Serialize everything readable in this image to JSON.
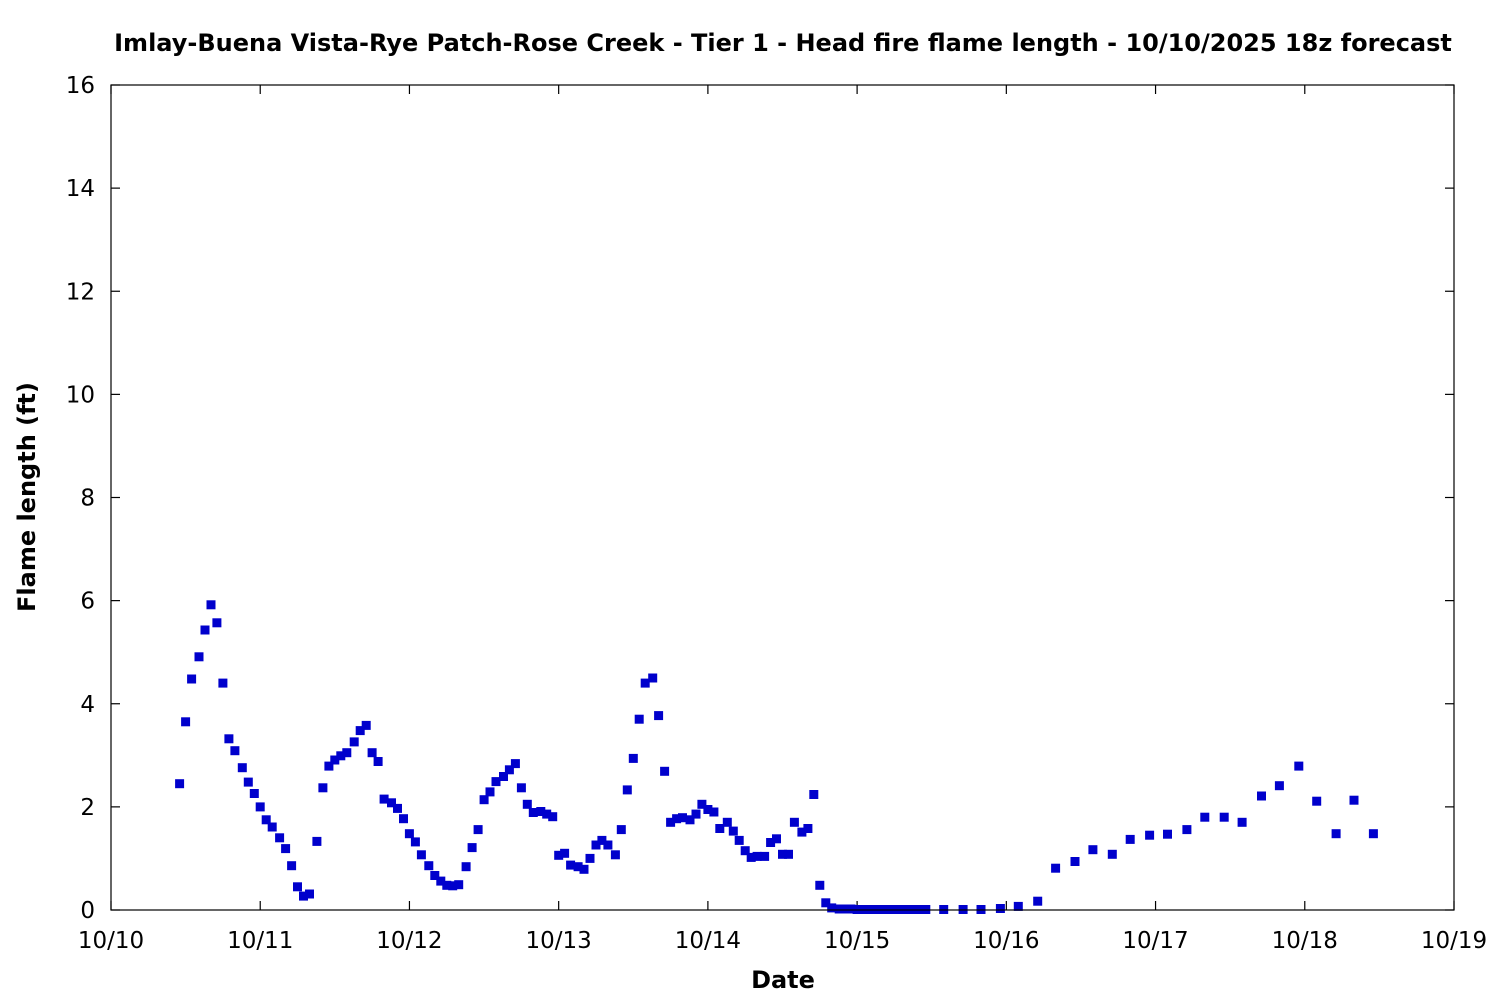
{
  "chart_data": {
    "type": "scatter",
    "title": "Imlay-Buena Vista-Rye Patch-Rose Creek - Tier 1 - Head fire flame length - 10/10/2025 18z forecast",
    "xlabel": "Date",
    "ylabel": "Flame length (ft)",
    "xlim": [
      0,
      9
    ],
    "ylim": [
      0,
      16
    ],
    "x_tick_labels": [
      "10/10",
      "10/11",
      "10/12",
      "10/13",
      "10/14",
      "10/15",
      "10/16",
      "10/17",
      "10/18",
      "10/19"
    ],
    "y_tick_labels": [
      "0",
      "2",
      "4",
      "6",
      "8",
      "10",
      "12",
      "14",
      "16"
    ],
    "grid": false,
    "legend": "none",
    "marker_color": "#0000cc",
    "marker": "square",
    "x_unit_note": "",
    "points": [
      [
        0.46,
        2.45
      ],
      [
        0.5,
        3.65
      ],
      [
        0.54,
        4.48
      ],
      [
        0.59,
        4.91
      ],
      [
        0.63,
        5.43
      ],
      [
        0.67,
        5.92
      ],
      [
        0.71,
        5.57
      ],
      [
        0.75,
        4.4
      ],
      [
        0.79,
        3.32
      ],
      [
        0.83,
        3.09
      ],
      [
        0.88,
        2.76
      ],
      [
        0.92,
        2.48
      ],
      [
        0.96,
        2.26
      ],
      [
        1.0,
        2.0
      ],
      [
        1.04,
        1.75
      ],
      [
        1.08,
        1.61
      ],
      [
        1.13,
        1.4
      ],
      [
        1.17,
        1.19
      ],
      [
        1.21,
        0.86
      ],
      [
        1.25,
        0.45
      ],
      [
        1.29,
        0.27
      ],
      [
        1.33,
        0.31
      ],
      [
        1.38,
        1.33
      ],
      [
        1.42,
        2.37
      ],
      [
        1.46,
        2.79
      ],
      [
        1.5,
        2.91
      ],
      [
        1.54,
        2.99
      ],
      [
        1.58,
        3.05
      ],
      [
        1.63,
        3.26
      ],
      [
        1.67,
        3.48
      ],
      [
        1.71,
        3.58
      ],
      [
        1.75,
        3.05
      ],
      [
        1.79,
        2.88
      ],
      [
        1.83,
        2.15
      ],
      [
        1.88,
        2.08
      ],
      [
        1.92,
        1.97
      ],
      [
        1.96,
        1.77
      ],
      [
        2.0,
        1.48
      ],
      [
        2.04,
        1.32
      ],
      [
        2.08,
        1.07
      ],
      [
        2.13,
        0.86
      ],
      [
        2.17,
        0.67
      ],
      [
        2.21,
        0.56
      ],
      [
        2.25,
        0.48
      ],
      [
        2.29,
        0.47
      ],
      [
        2.33,
        0.49
      ],
      [
        2.38,
        0.84
      ],
      [
        2.42,
        1.21
      ],
      [
        2.46,
        1.56
      ],
      [
        2.5,
        2.14
      ],
      [
        2.54,
        2.29
      ],
      [
        2.58,
        2.49
      ],
      [
        2.63,
        2.59
      ],
      [
        2.67,
        2.72
      ],
      [
        2.71,
        2.84
      ],
      [
        2.75,
        2.37
      ],
      [
        2.79,
        2.05
      ],
      [
        2.83,
        1.89
      ],
      [
        2.88,
        1.91
      ],
      [
        2.92,
        1.86
      ],
      [
        2.96,
        1.81
      ],
      [
        3.0,
        1.06
      ],
      [
        3.04,
        1.1
      ],
      [
        3.08,
        0.87
      ],
      [
        3.13,
        0.84
      ],
      [
        3.17,
        0.79
      ],
      [
        3.21,
        1.0
      ],
      [
        3.25,
        1.26
      ],
      [
        3.29,
        1.35
      ],
      [
        3.33,
        1.26
      ],
      [
        3.38,
        1.07
      ],
      [
        3.42,
        1.56
      ],
      [
        3.46,
        2.33
      ],
      [
        3.5,
        2.94
      ],
      [
        3.54,
        3.7
      ],
      [
        3.58,
        4.4
      ],
      [
        3.63,
        4.5
      ],
      [
        3.67,
        3.77
      ],
      [
        3.71,
        2.69
      ],
      [
        3.75,
        1.7
      ],
      [
        3.79,
        1.77
      ],
      [
        3.83,
        1.79
      ],
      [
        3.88,
        1.75
      ],
      [
        3.92,
        1.86
      ],
      [
        3.96,
        2.05
      ],
      [
        4.0,
        1.95
      ],
      [
        4.04,
        1.9
      ],
      [
        4.08,
        1.58
      ],
      [
        4.13,
        1.7
      ],
      [
        4.17,
        1.53
      ],
      [
        4.21,
        1.35
      ],
      [
        4.25,
        1.15
      ],
      [
        4.29,
        1.02
      ],
      [
        4.33,
        1.04
      ],
      [
        4.38,
        1.04
      ],
      [
        4.42,
        1.31
      ],
      [
        4.46,
        1.38
      ],
      [
        4.5,
        1.08
      ],
      [
        4.54,
        1.08
      ],
      [
        4.58,
        1.7
      ],
      [
        4.63,
        1.51
      ],
      [
        4.67,
        1.58
      ],
      [
        4.71,
        2.24
      ],
      [
        4.75,
        0.48
      ],
      [
        4.79,
        0.14
      ],
      [
        4.83,
        0.04
      ],
      [
        4.88,
        0.02
      ],
      [
        4.92,
        0.02
      ],
      [
        4.96,
        0.02
      ],
      [
        5.0,
        0.01
      ],
      [
        5.04,
        0.01
      ],
      [
        5.08,
        0.01
      ],
      [
        5.13,
        0.01
      ],
      [
        5.17,
        0.01
      ],
      [
        5.21,
        0.01
      ],
      [
        5.25,
        0.01
      ],
      [
        5.29,
        0.01
      ],
      [
        5.33,
        0.01
      ],
      [
        5.38,
        0.01
      ],
      [
        5.42,
        0.01
      ],
      [
        5.46,
        0.01
      ],
      [
        5.58,
        0.01
      ],
      [
        5.71,
        0.01
      ],
      [
        5.83,
        0.01
      ],
      [
        5.96,
        0.03
      ],
      [
        6.08,
        0.07
      ],
      [
        6.21,
        0.17
      ],
      [
        6.33,
        0.81
      ],
      [
        6.46,
        0.94
      ],
      [
        6.58,
        1.17
      ],
      [
        6.71,
        1.08
      ],
      [
        6.83,
        1.37
      ],
      [
        6.96,
        1.45
      ],
      [
        7.08,
        1.47
      ],
      [
        7.21,
        1.56
      ],
      [
        7.33,
        1.8
      ],
      [
        7.46,
        1.8
      ],
      [
        7.58,
        1.7
      ],
      [
        7.71,
        2.21
      ],
      [
        7.83,
        2.41
      ],
      [
        7.96,
        2.79
      ],
      [
        8.08,
        2.11
      ],
      [
        8.21,
        1.48
      ],
      [
        8.33,
        2.13
      ],
      [
        8.46,
        1.48
      ]
    ]
  }
}
